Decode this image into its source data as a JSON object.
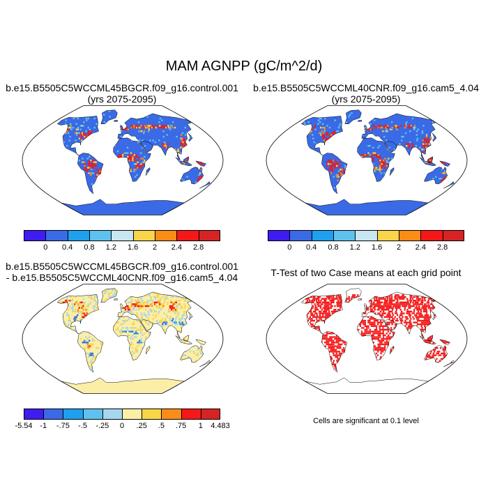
{
  "title": "MAM AGNPP (gC/m^2/d)",
  "panels": [
    {
      "title_lines": [
        "b.e15.B5505C5WCCML45BGCR.f09_g16.control.001",
        "(yrs 2075-2095)"
      ],
      "type": "field"
    },
    {
      "title_lines": [
        "b.e15.B5505C5WCCML40CNR.f09_g16.cam5_4.04",
        "(yrs 2075-2095)"
      ],
      "type": "field"
    },
    {
      "title_lines": [
        "b.e15.B5505C5WCCML45BGCR.f09_g16.control.001",
        "- b.e15.B5505C5WCCML40CNR.f09_g16.cam5_4.04"
      ],
      "type": "difference"
    },
    {
      "title_lines": [
        "T-Test of two Case means at each grid point"
      ],
      "type": "significance",
      "note": "Cells are significant at 0.1 level"
    }
  ],
  "colorbars": {
    "field": {
      "colors": [
        "#3f1cf2",
        "#3a6ae6",
        "#1fa0ee",
        "#5fc2ee",
        "#c8e6f0",
        "#f8d54a",
        "#f98d18",
        "#f51818",
        "#d62424"
      ],
      "labels": [
        "0",
        "0.4",
        "0.8",
        "1.2",
        "1.6",
        "2",
        "2.4",
        "2.8"
      ]
    },
    "diff": {
      "colors": [
        "#3f1cf2",
        "#3a6ae6",
        "#1fa0ee",
        "#5fc2ee",
        "#a8d6ee",
        "#fbefa8",
        "#f9d548",
        "#f98d18",
        "#f51818",
        "#d62424"
      ],
      "labels": [
        "-5.54",
        "-1",
        "-.75",
        "-.5",
        "-.25",
        "0",
        ".25",
        ".5",
        ".75",
        "1",
        "4.483"
      ]
    }
  },
  "map_colors": {
    "ocean": "#ffffff",
    "field_land": "#3a6ae6",
    "field_hi": "#f51818",
    "field_mid": "#f98d18",
    "field_yellow": "#f8d54a",
    "diff_land": "#fbefa8",
    "diff_pos": "#f51818",
    "diff_neg": "#3a6ae6",
    "sig": "#f51818"
  }
}
